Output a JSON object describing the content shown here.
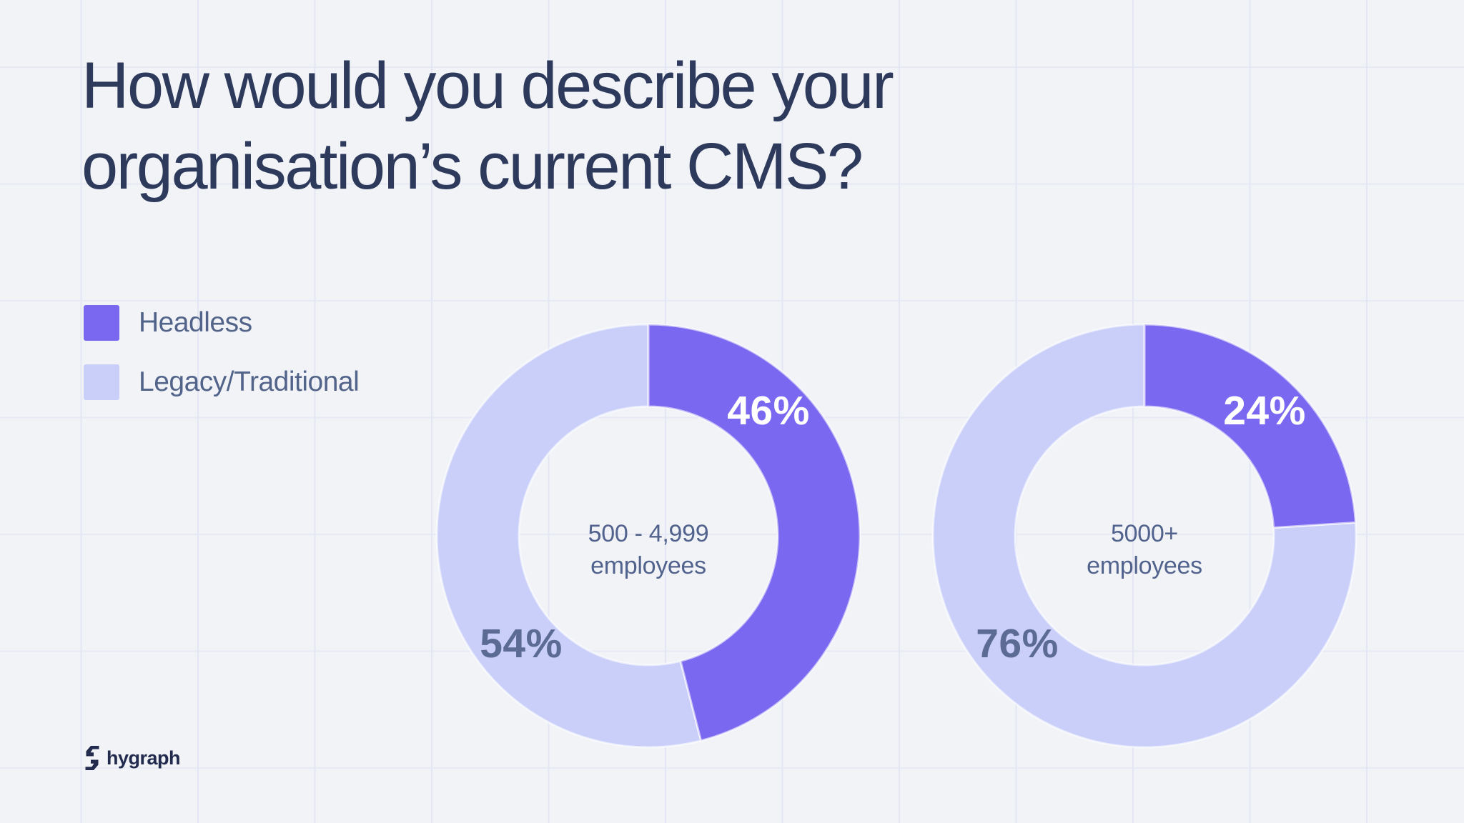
{
  "title": {
    "line1": "How would you describe your",
    "line2": "organisation’s current CMS?"
  },
  "legend": {
    "items": [
      {
        "label": "Headless",
        "color": "#7B68F0"
      },
      {
        "label": "Legacy/Traditional",
        "color": "#C9CFF8"
      }
    ]
  },
  "chart_data": [
    {
      "type": "pie",
      "subtype": "donut",
      "title": "500 - 4,999 employees",
      "center_label_lines": [
        "500 - 4,999",
        "employees"
      ],
      "start_angle_deg": 0,
      "direction": "clockwise",
      "segments": [
        {
          "name": "Headless",
          "value": 46,
          "label": "46%",
          "color": "#7B68F0",
          "label_color": "#FFFFFF"
        },
        {
          "name": "Legacy/Traditional",
          "value": 54,
          "label": "54%",
          "color": "#C9CFF8",
          "label_color": "#5C6B93"
        }
      ]
    },
    {
      "type": "pie",
      "subtype": "donut",
      "title": "5000+ employees",
      "center_label_lines": [
        "5000+",
        "employees"
      ],
      "start_angle_deg": 0,
      "direction": "clockwise",
      "segments": [
        {
          "name": "Headless",
          "value": 24,
          "label": "24%",
          "color": "#7B68F0",
          "label_color": "#FFFFFF"
        },
        {
          "name": "Legacy/Traditional",
          "value": 76,
          "label": "76%",
          "color": "#C9CFF8",
          "label_color": "#5C6B93"
        }
      ]
    }
  ],
  "footer": {
    "brand": "hygraph"
  },
  "colors": {
    "background": "#F1F3F7",
    "grid_line": "#E5E8F4",
    "headless_purple": "#7B68F0",
    "legacy_lavender": "#C9CFF8",
    "slice_stroke": "rgba(255,255,255,0.6)",
    "title_text": "#2E3A5C",
    "legend_text": "#53648B",
    "percent_text": "#5C6B93",
    "center_text": "#51628D",
    "brand_text": "#222B4E"
  }
}
